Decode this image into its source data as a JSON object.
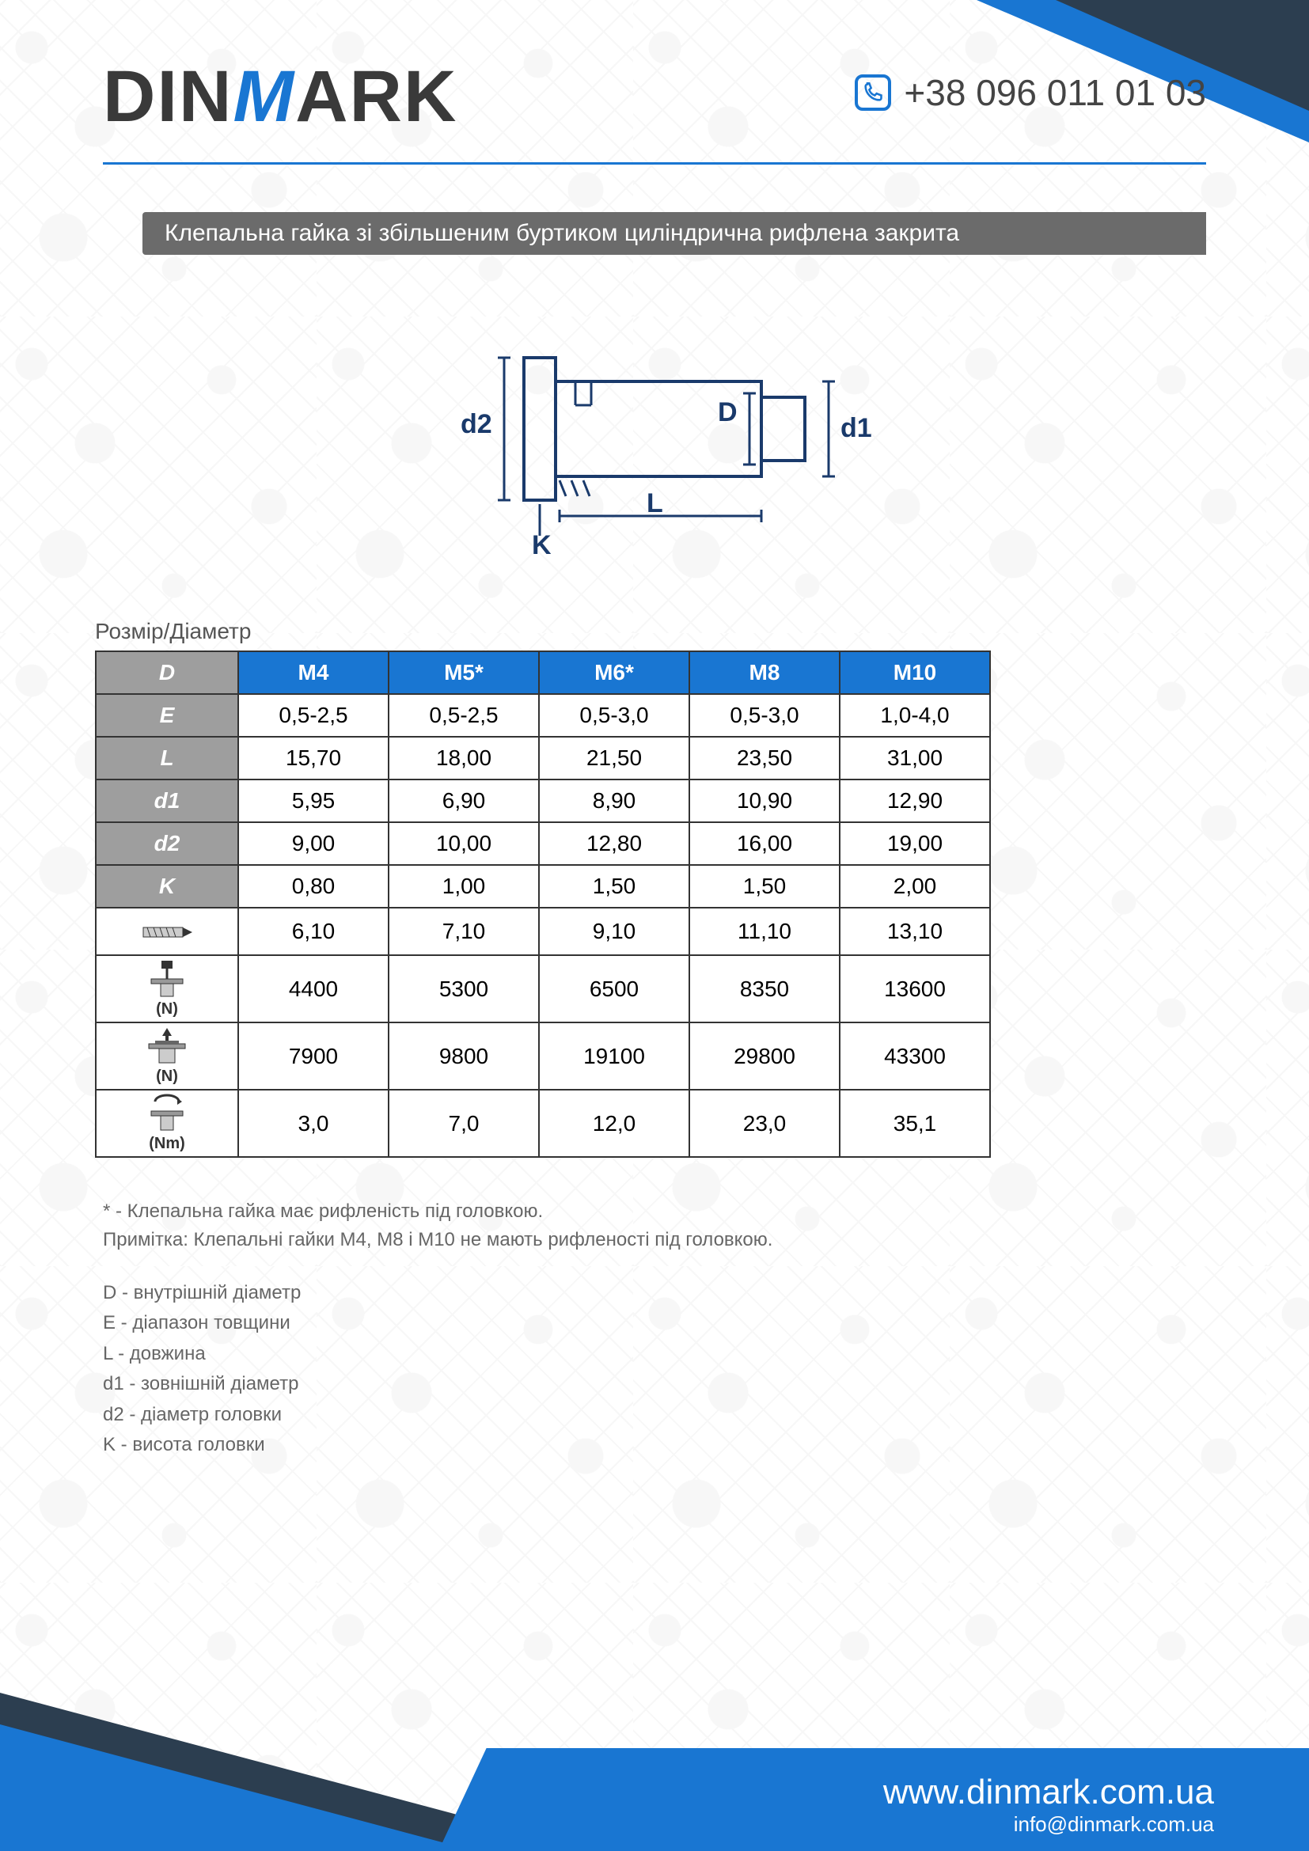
{
  "brand": {
    "name_part1": "DIN",
    "name_accent": "M",
    "name_part2": "ARK"
  },
  "contact": {
    "phone": "+38 096 011 01 03",
    "website": "www.dinmark.com.ua",
    "email": "info@dinmark.com.ua"
  },
  "title": "Клепальна гайка зі збільшеним буртиком циліндрична рифлена закрита",
  "diagram": {
    "labels": {
      "d2": "d2",
      "D": "D",
      "d1": "d1",
      "L": "L",
      "K": "K"
    },
    "stroke": "#1a3a6b",
    "stroke_width": 4
  },
  "table": {
    "caption": "Розмір/Діаметр",
    "header_bg": "#1976d2",
    "rowhead_bg": "#9e9e9e",
    "border_color": "#333333",
    "cell_bg": "#ffffff",
    "columns": [
      "M4",
      "M5*",
      "M6*",
      "M8",
      "M10"
    ],
    "rows": [
      {
        "label": "D",
        "type": "text",
        "values": [
          "M4",
          "M5*",
          "M6*",
          "M8",
          "M10"
        ],
        "is_header_row": true
      },
      {
        "label": "E",
        "type": "text",
        "values": [
          "0,5-2,5",
          "0,5-2,5",
          "0,5-3,0",
          "0,5-3,0",
          "1,0-4,0"
        ]
      },
      {
        "label": "L",
        "type": "text",
        "values": [
          "15,70",
          "18,00",
          "21,50",
          "23,50",
          "31,00"
        ]
      },
      {
        "label": "d1",
        "type": "text",
        "values": [
          "5,95",
          "6,90",
          "8,90",
          "10,90",
          "12,90"
        ]
      },
      {
        "label": "d2",
        "type": "text",
        "values": [
          "9,00",
          "10,00",
          "12,80",
          "16,00",
          "19,00"
        ]
      },
      {
        "label": "K",
        "type": "text",
        "values": [
          "0,80",
          "1,00",
          "1,50",
          "1,50",
          "2,00"
        ]
      },
      {
        "label": "drill",
        "type": "icon",
        "icon": "drill",
        "unit": "",
        "values": [
          "6,10",
          "7,10",
          "9,10",
          "11,10",
          "13,10"
        ]
      },
      {
        "label": "tensile",
        "type": "icon",
        "icon": "pull-up",
        "unit": "(N)",
        "values": [
          "4400",
          "5300",
          "6500",
          "8350",
          "13600"
        ]
      },
      {
        "label": "shear",
        "type": "icon",
        "icon": "press",
        "unit": "(N)",
        "values": [
          "7900",
          "9800",
          "19100",
          "29800",
          "43300"
        ]
      },
      {
        "label": "torque",
        "type": "icon",
        "icon": "torque",
        "unit": "(Nm)",
        "values": [
          "3,0",
          "7,0",
          "12,0",
          "23,0",
          "35,1"
        ]
      }
    ]
  },
  "notes": [
    "* - Клепальна гайка має рифленість під головкою.",
    "Примітка: Клепальні гайки M4, M8 і M10 не мають рифленості під головкою."
  ],
  "legend": [
    "D - внутрішній діаметр",
    "E - діапазон  товщини",
    "L - довжина",
    "d1 - зовнішній діаметр",
    "d2 - діаметр головки",
    "K - висота головки"
  ],
  "colors": {
    "accent": "#1976d2",
    "dark": "#2c3e50",
    "grey": "#6b6b6b",
    "text": "#444444"
  }
}
